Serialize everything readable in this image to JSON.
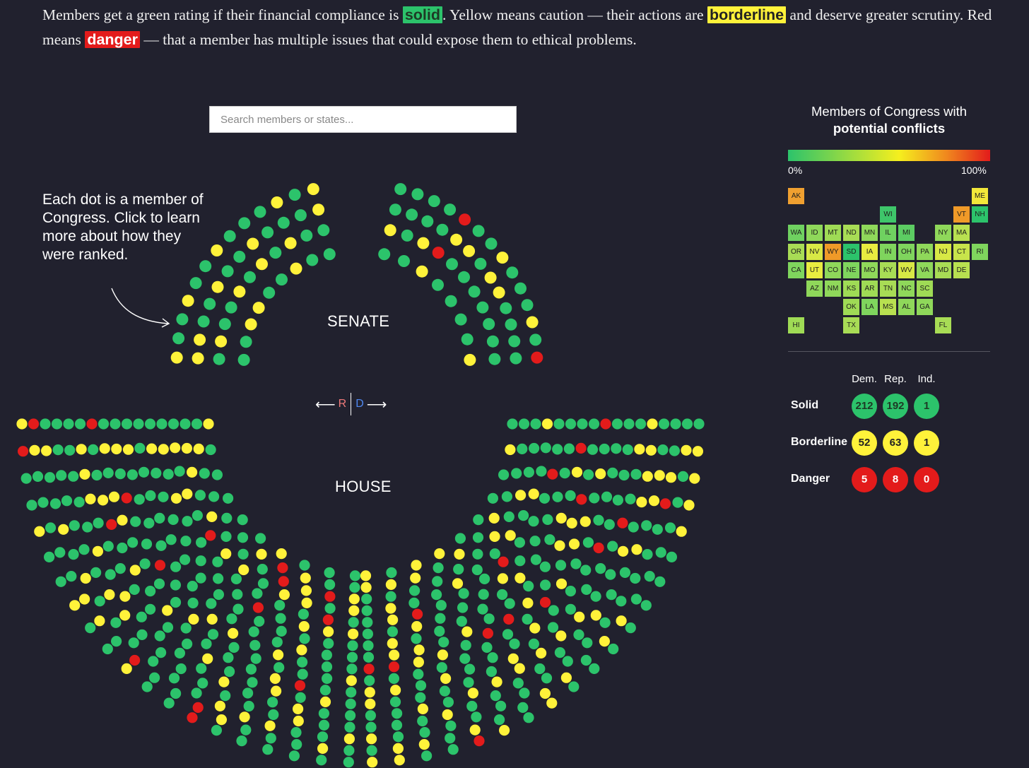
{
  "intro": {
    "p1": "Members get a green rating if their financial compliance is ",
    "solid": "solid",
    "p2": ". Yellow means caution — their actions are ",
    "borderline": "borderline",
    "p3": " and deserve greater scrutiny. Red means ",
    "danger": "danger",
    "p4": " — that a member has multiple issues that could expose them to ethical problems."
  },
  "search": {
    "placeholder": "Search members or states..."
  },
  "annotation": "Each dot is a member of Congress. Click to learn more about how they were ranked.",
  "senate_label": "SENATE",
  "house_label": "HOUSE",
  "direction": {
    "left_arrow": "⟵",
    "r": "R",
    "d": "D",
    "right_arrow": "⟶"
  },
  "legend": {
    "title_line1": "Members of Congress with",
    "title_line2": "potential conflicts",
    "min": "0%",
    "max": "100%"
  },
  "colors": {
    "solid": "#2cc36b",
    "borderline": "#fff23a",
    "danger": "#e31b1b",
    "background": "#21212e"
  },
  "states": [
    {
      "abbr": "AK",
      "color": "#f0a030"
    },
    {
      "abbr": "ME",
      "color": "#f2e83a"
    },
    {
      "abbr": "WI",
      "color": "#3ec66a"
    },
    {
      "abbr": "VT",
      "color": "#f09a28"
    },
    {
      "abbr": "NH",
      "color": "#2cc36b"
    },
    {
      "abbr": "WA",
      "color": "#6fd160"
    },
    {
      "abbr": "ID",
      "color": "#8fd85a"
    },
    {
      "abbr": "MT",
      "color": "#9fdb55"
    },
    {
      "abbr": "ND",
      "color": "#a8dc55"
    },
    {
      "abbr": "MN",
      "color": "#8fd85a"
    },
    {
      "abbr": "IL",
      "color": "#6fd160"
    },
    {
      "abbr": "MI",
      "color": "#5ccc62"
    },
    {
      "abbr": "NY",
      "color": "#8fd85a"
    },
    {
      "abbr": "MA",
      "color": "#b8e050"
    },
    {
      "abbr": "OR",
      "color": "#a8dc55"
    },
    {
      "abbr": "NV",
      "color": "#d8e845"
    },
    {
      "abbr": "WY",
      "color": "#f09a28"
    },
    {
      "abbr": "SD",
      "color": "#2cc36b"
    },
    {
      "abbr": "IA",
      "color": "#e8ec40"
    },
    {
      "abbr": "IN",
      "color": "#7fd55d"
    },
    {
      "abbr": "OH",
      "color": "#7fd55d"
    },
    {
      "abbr": "PA",
      "color": "#8fd85a"
    },
    {
      "abbr": "NJ",
      "color": "#d8e845"
    },
    {
      "abbr": "CT",
      "color": "#c8e44b"
    },
    {
      "abbr": "RI",
      "color": "#7fd55d"
    },
    {
      "abbr": "CA",
      "color": "#7fd55d"
    },
    {
      "abbr": "UT",
      "color": "#e8ec40"
    },
    {
      "abbr": "CO",
      "color": "#8fd85a"
    },
    {
      "abbr": "NE",
      "color": "#7fd55d"
    },
    {
      "abbr": "MO",
      "color": "#8fd85a"
    },
    {
      "abbr": "KY",
      "color": "#a8dc55"
    },
    {
      "abbr": "WV",
      "color": "#d8e845"
    },
    {
      "abbr": "VA",
      "color": "#8fd85a"
    },
    {
      "abbr": "MD",
      "color": "#a8dc55"
    },
    {
      "abbr": "DE",
      "color": "#b8e050"
    },
    {
      "abbr": "AZ",
      "color": "#8fd85a"
    },
    {
      "abbr": "NM",
      "color": "#8fd85a"
    },
    {
      "abbr": "KS",
      "color": "#9fdb55"
    },
    {
      "abbr": "AR",
      "color": "#9fdb55"
    },
    {
      "abbr": "TN",
      "color": "#a8dc55"
    },
    {
      "abbr": "NC",
      "color": "#8fd85a"
    },
    {
      "abbr": "SC",
      "color": "#9fdb55"
    },
    {
      "abbr": "OK",
      "color": "#9fdb55"
    },
    {
      "abbr": "LA",
      "color": "#7fd55d"
    },
    {
      "abbr": "MS",
      "color": "#b8e050"
    },
    {
      "abbr": "AL",
      "color": "#8fd85a"
    },
    {
      "abbr": "GA",
      "color": "#8fd85a"
    },
    {
      "abbr": "HI",
      "color": "#9fdb55"
    },
    {
      "abbr": "TX",
      "color": "#a8dc55"
    },
    {
      "abbr": "FL",
      "color": "#a8dc55"
    }
  ],
  "tally": {
    "columns": [
      "Dem.",
      "Rep.",
      "Ind."
    ],
    "rows": [
      {
        "label": "Solid",
        "status": "solid",
        "values": [
          "212",
          "192",
          "1"
        ]
      },
      {
        "label": "Borderline",
        "status": "borderline",
        "values": [
          "52",
          "63",
          "1"
        ]
      },
      {
        "label": "Danger",
        "status": "danger",
        "values": [
          "5",
          "8",
          "0"
        ]
      }
    ]
  }
}
